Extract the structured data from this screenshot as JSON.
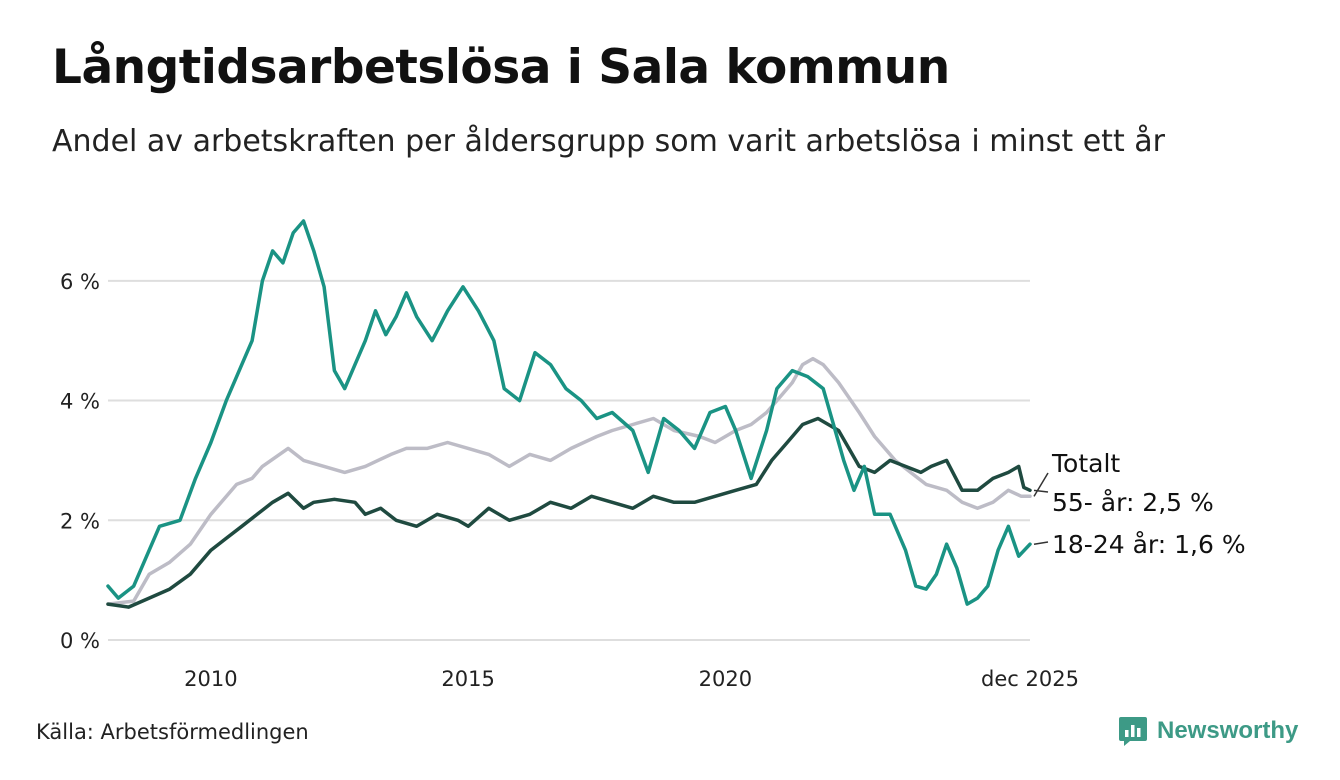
{
  "header": {
    "title": "Långtidsarbetslösa i Sala kommun",
    "subtitle": "Andel av arbetskraften per åldersgrupp som varit arbetslösa i minst ett år"
  },
  "footer": {
    "source": "Källa: Arbetsförmedlingen",
    "brand": "Newsworthy"
  },
  "colors": {
    "youth": "#1a9384",
    "senior": "#1f4a40",
    "total": "#bdbcc6",
    "grid": "#dedede"
  },
  "chart_data": {
    "type": "line",
    "title": "Långtidsarbetslösa i Sala kommun",
    "xlabel": "",
    "ylabel": "",
    "ylim": [
      0,
      7.2
    ],
    "xlim": [
      2008.0,
      2025.92
    ],
    "x_ticks": [
      {
        "value": 2010,
        "label": "2010"
      },
      {
        "value": 2015,
        "label": "2015"
      },
      {
        "value": 2020,
        "label": "2020"
      },
      {
        "value": 2025.92,
        "label": "dec 2025"
      }
    ],
    "y_ticks": [
      {
        "value": 0,
        "label": "0 %"
      },
      {
        "value": 2,
        "label": "2 %"
      },
      {
        "value": 4,
        "label": "4 %"
      },
      {
        "value": 6,
        "label": "6 %"
      }
    ],
    "grid": true,
    "series": [
      {
        "name": "Totalt",
        "label": "Totalt",
        "color": "#bdbcc6",
        "points": [
          [
            2008.0,
            0.6
          ],
          [
            2008.5,
            0.65
          ],
          [
            2008.8,
            1.1
          ],
          [
            2009.2,
            1.3
          ],
          [
            2009.6,
            1.6
          ],
          [
            2010.0,
            2.1
          ],
          [
            2010.5,
            2.6
          ],
          [
            2010.8,
            2.7
          ],
          [
            2011.0,
            2.9
          ],
          [
            2011.5,
            3.2
          ],
          [
            2011.8,
            3.0
          ],
          [
            2012.2,
            2.9
          ],
          [
            2012.6,
            2.8
          ],
          [
            2013.0,
            2.9
          ],
          [
            2013.5,
            3.1
          ],
          [
            2013.8,
            3.2
          ],
          [
            2014.2,
            3.2
          ],
          [
            2014.6,
            3.3
          ],
          [
            2015.0,
            3.2
          ],
          [
            2015.4,
            3.1
          ],
          [
            2015.8,
            2.9
          ],
          [
            2016.2,
            3.1
          ],
          [
            2016.6,
            3.0
          ],
          [
            2017.0,
            3.2
          ],
          [
            2017.5,
            3.4
          ],
          [
            2017.8,
            3.5
          ],
          [
            2018.2,
            3.6
          ],
          [
            2018.6,
            3.7
          ],
          [
            2019.0,
            3.5
          ],
          [
            2019.5,
            3.4
          ],
          [
            2019.8,
            3.3
          ],
          [
            2020.2,
            3.5
          ],
          [
            2020.5,
            3.6
          ],
          [
            2020.8,
            3.8
          ],
          [
            2021.0,
            4.0
          ],
          [
            2021.3,
            4.3
          ],
          [
            2021.5,
            4.6
          ],
          [
            2021.7,
            4.7
          ],
          [
            2021.9,
            4.6
          ],
          [
            2022.2,
            4.3
          ],
          [
            2022.6,
            3.8
          ],
          [
            2022.9,
            3.4
          ],
          [
            2023.3,
            3.0
          ],
          [
            2023.6,
            2.8
          ],
          [
            2023.9,
            2.6
          ],
          [
            2024.3,
            2.5
          ],
          [
            2024.6,
            2.3
          ],
          [
            2024.9,
            2.2
          ],
          [
            2025.2,
            2.3
          ],
          [
            2025.5,
            2.5
          ],
          [
            2025.75,
            2.4
          ],
          [
            2025.92,
            2.4
          ]
        ],
        "end_label": "Totalt"
      },
      {
        "name": "55- år",
        "label": "55- år: 2,5 %",
        "color": "#1f4a40",
        "points": [
          [
            2008.0,
            0.6
          ],
          [
            2008.4,
            0.55
          ],
          [
            2008.8,
            0.7
          ],
          [
            2009.2,
            0.85
          ],
          [
            2009.6,
            1.1
          ],
          [
            2010.0,
            1.5
          ],
          [
            2010.3,
            1.7
          ],
          [
            2010.6,
            1.9
          ],
          [
            2010.9,
            2.1
          ],
          [
            2011.2,
            2.3
          ],
          [
            2011.5,
            2.45
          ],
          [
            2011.8,
            2.2
          ],
          [
            2012.0,
            2.3
          ],
          [
            2012.4,
            2.35
          ],
          [
            2012.8,
            2.3
          ],
          [
            2013.0,
            2.1
          ],
          [
            2013.3,
            2.2
          ],
          [
            2013.6,
            2.0
          ],
          [
            2014.0,
            1.9
          ],
          [
            2014.4,
            2.1
          ],
          [
            2014.8,
            2.0
          ],
          [
            2015.0,
            1.9
          ],
          [
            2015.4,
            2.2
          ],
          [
            2015.8,
            2.0
          ],
          [
            2016.2,
            2.1
          ],
          [
            2016.6,
            2.3
          ],
          [
            2017.0,
            2.2
          ],
          [
            2017.4,
            2.4
          ],
          [
            2017.8,
            2.3
          ],
          [
            2018.2,
            2.2
          ],
          [
            2018.6,
            2.4
          ],
          [
            2019.0,
            2.3
          ],
          [
            2019.4,
            2.3
          ],
          [
            2019.8,
            2.4
          ],
          [
            2020.2,
            2.5
          ],
          [
            2020.6,
            2.6
          ],
          [
            2020.9,
            3.0
          ],
          [
            2021.2,
            3.3
          ],
          [
            2021.5,
            3.6
          ],
          [
            2021.8,
            3.7
          ],
          [
            2022.0,
            3.6
          ],
          [
            2022.2,
            3.5
          ],
          [
            2022.4,
            3.2
          ],
          [
            2022.6,
            2.9
          ],
          [
            2022.9,
            2.8
          ],
          [
            2023.2,
            3.0
          ],
          [
            2023.5,
            2.9
          ],
          [
            2023.8,
            2.8
          ],
          [
            2024.0,
            2.9
          ],
          [
            2024.3,
            3.0
          ],
          [
            2024.6,
            2.5
          ],
          [
            2024.9,
            2.5
          ],
          [
            2025.2,
            2.7
          ],
          [
            2025.5,
            2.8
          ],
          [
            2025.7,
            2.9
          ],
          [
            2025.8,
            2.55
          ],
          [
            2025.92,
            2.5
          ]
        ],
        "end_label": "55- år: 2,5 %"
      },
      {
        "name": "18-24 år",
        "label": "18-24 år: 1,6 %",
        "color": "#1a9384",
        "points": [
          [
            2008.0,
            0.9
          ],
          [
            2008.2,
            0.7
          ],
          [
            2008.5,
            0.9
          ],
          [
            2008.8,
            1.5
          ],
          [
            2009.0,
            1.9
          ],
          [
            2009.4,
            2.0
          ],
          [
            2009.7,
            2.7
          ],
          [
            2010.0,
            3.3
          ],
          [
            2010.3,
            4.0
          ],
          [
            2010.6,
            4.6
          ],
          [
            2010.8,
            5.0
          ],
          [
            2011.0,
            6.0
          ],
          [
            2011.2,
            6.5
          ],
          [
            2011.4,
            6.3
          ],
          [
            2011.6,
            6.8
          ],
          [
            2011.8,
            7.0
          ],
          [
            2012.0,
            6.5
          ],
          [
            2012.2,
            5.9
          ],
          [
            2012.4,
            4.5
          ],
          [
            2012.6,
            4.2
          ],
          [
            2012.8,
            4.6
          ],
          [
            2013.0,
            5.0
          ],
          [
            2013.2,
            5.5
          ],
          [
            2013.4,
            5.1
          ],
          [
            2013.6,
            5.4
          ],
          [
            2013.8,
            5.8
          ],
          [
            2014.0,
            5.4
          ],
          [
            2014.3,
            5.0
          ],
          [
            2014.6,
            5.5
          ],
          [
            2014.9,
            5.9
          ],
          [
            2015.2,
            5.5
          ],
          [
            2015.5,
            5.0
          ],
          [
            2015.7,
            4.2
          ],
          [
            2016.0,
            4.0
          ],
          [
            2016.3,
            4.8
          ],
          [
            2016.6,
            4.6
          ],
          [
            2016.9,
            4.2
          ],
          [
            2017.2,
            4.0
          ],
          [
            2017.5,
            3.7
          ],
          [
            2017.8,
            3.8
          ],
          [
            2018.2,
            3.5
          ],
          [
            2018.5,
            2.8
          ],
          [
            2018.8,
            3.7
          ],
          [
            2019.1,
            3.5
          ],
          [
            2019.4,
            3.2
          ],
          [
            2019.7,
            3.8
          ],
          [
            2020.0,
            3.9
          ],
          [
            2020.2,
            3.5
          ],
          [
            2020.5,
            2.7
          ],
          [
            2020.8,
            3.5
          ],
          [
            2021.0,
            4.2
          ],
          [
            2021.3,
            4.5
          ],
          [
            2021.6,
            4.4
          ],
          [
            2021.9,
            4.2
          ],
          [
            2022.1,
            3.6
          ],
          [
            2022.3,
            3.0
          ],
          [
            2022.5,
            2.5
          ],
          [
            2022.7,
            2.9
          ],
          [
            2022.9,
            2.1
          ],
          [
            2023.2,
            2.1
          ],
          [
            2023.5,
            1.5
          ],
          [
            2023.7,
            0.9
          ],
          [
            2023.9,
            0.85
          ],
          [
            2024.1,
            1.1
          ],
          [
            2024.3,
            1.6
          ],
          [
            2024.5,
            1.2
          ],
          [
            2024.7,
            0.6
          ],
          [
            2024.9,
            0.7
          ],
          [
            2025.1,
            0.9
          ],
          [
            2025.3,
            1.5
          ],
          [
            2025.5,
            1.9
          ],
          [
            2025.7,
            1.4
          ],
          [
            2025.92,
            1.6
          ]
        ],
        "end_label": "18-24 år: 1,6 %"
      }
    ]
  }
}
